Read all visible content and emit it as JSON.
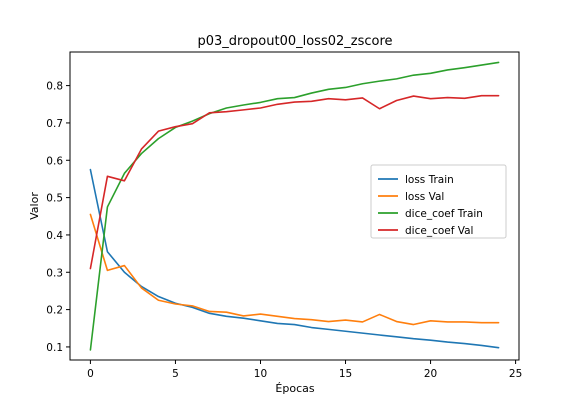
{
  "chart_data": {
    "type": "line",
    "title": "p03_dropout00_loss02_zscore",
    "xlabel": "Épocas",
    "ylabel": "Valor",
    "xlim": [
      -1.2,
      25.2
    ],
    "ylim": [
      0.065,
      0.89
    ],
    "xticks": [
      0,
      5,
      10,
      15,
      20,
      25
    ],
    "yticks": [
      0.1,
      0.2,
      0.3,
      0.4,
      0.5,
      0.6,
      0.7,
      0.8
    ],
    "ytick_labels": [
      "0.1",
      "0.2",
      "0.3",
      "0.4",
      "0.5",
      "0.6",
      "0.7",
      "0.8"
    ],
    "xtick_labels": [
      "0",
      "5",
      "10",
      "15",
      "20",
      "25"
    ],
    "x": [
      0,
      1,
      2,
      3,
      4,
      5,
      6,
      7,
      8,
      9,
      10,
      11,
      12,
      13,
      14,
      15,
      16,
      17,
      18,
      19,
      20,
      21,
      22,
      23,
      24
    ],
    "legend_position": "center-right",
    "grid": false,
    "series": [
      {
        "name": "loss Train",
        "color": "#1f77b4",
        "values": [
          0.575,
          0.355,
          0.3,
          0.262,
          0.235,
          0.217,
          0.206,
          0.19,
          0.182,
          0.177,
          0.17,
          0.163,
          0.16,
          0.152,
          0.147,
          0.142,
          0.137,
          0.132,
          0.127,
          0.122,
          0.118,
          0.113,
          0.109,
          0.104,
          0.098
        ]
      },
      {
        "name": "loss Val",
        "color": "#ff7f0e",
        "values": [
          0.455,
          0.305,
          0.318,
          0.258,
          0.225,
          0.215,
          0.21,
          0.195,
          0.193,
          0.183,
          0.188,
          0.182,
          0.176,
          0.173,
          0.168,
          0.172,
          0.167,
          0.187,
          0.168,
          0.16,
          0.17,
          0.167,
          0.167,
          0.165,
          0.165
        ]
      },
      {
        "name": "dice_coef Train",
        "color": "#2ca02c",
        "values": [
          0.092,
          0.475,
          0.565,
          0.618,
          0.658,
          0.688,
          0.705,
          0.725,
          0.74,
          0.748,
          0.755,
          0.765,
          0.768,
          0.78,
          0.79,
          0.795,
          0.805,
          0.812,
          0.818,
          0.828,
          0.833,
          0.842,
          0.848,
          0.855,
          0.862
        ]
      },
      {
        "name": "dice_coef Val",
        "color": "#d62728",
        "values": [
          0.31,
          0.557,
          0.545,
          0.63,
          0.678,
          0.69,
          0.698,
          0.727,
          0.73,
          0.735,
          0.74,
          0.75,
          0.756,
          0.758,
          0.765,
          0.762,
          0.767,
          0.738,
          0.76,
          0.772,
          0.765,
          0.768,
          0.766,
          0.773,
          0.773
        ]
      }
    ]
  }
}
